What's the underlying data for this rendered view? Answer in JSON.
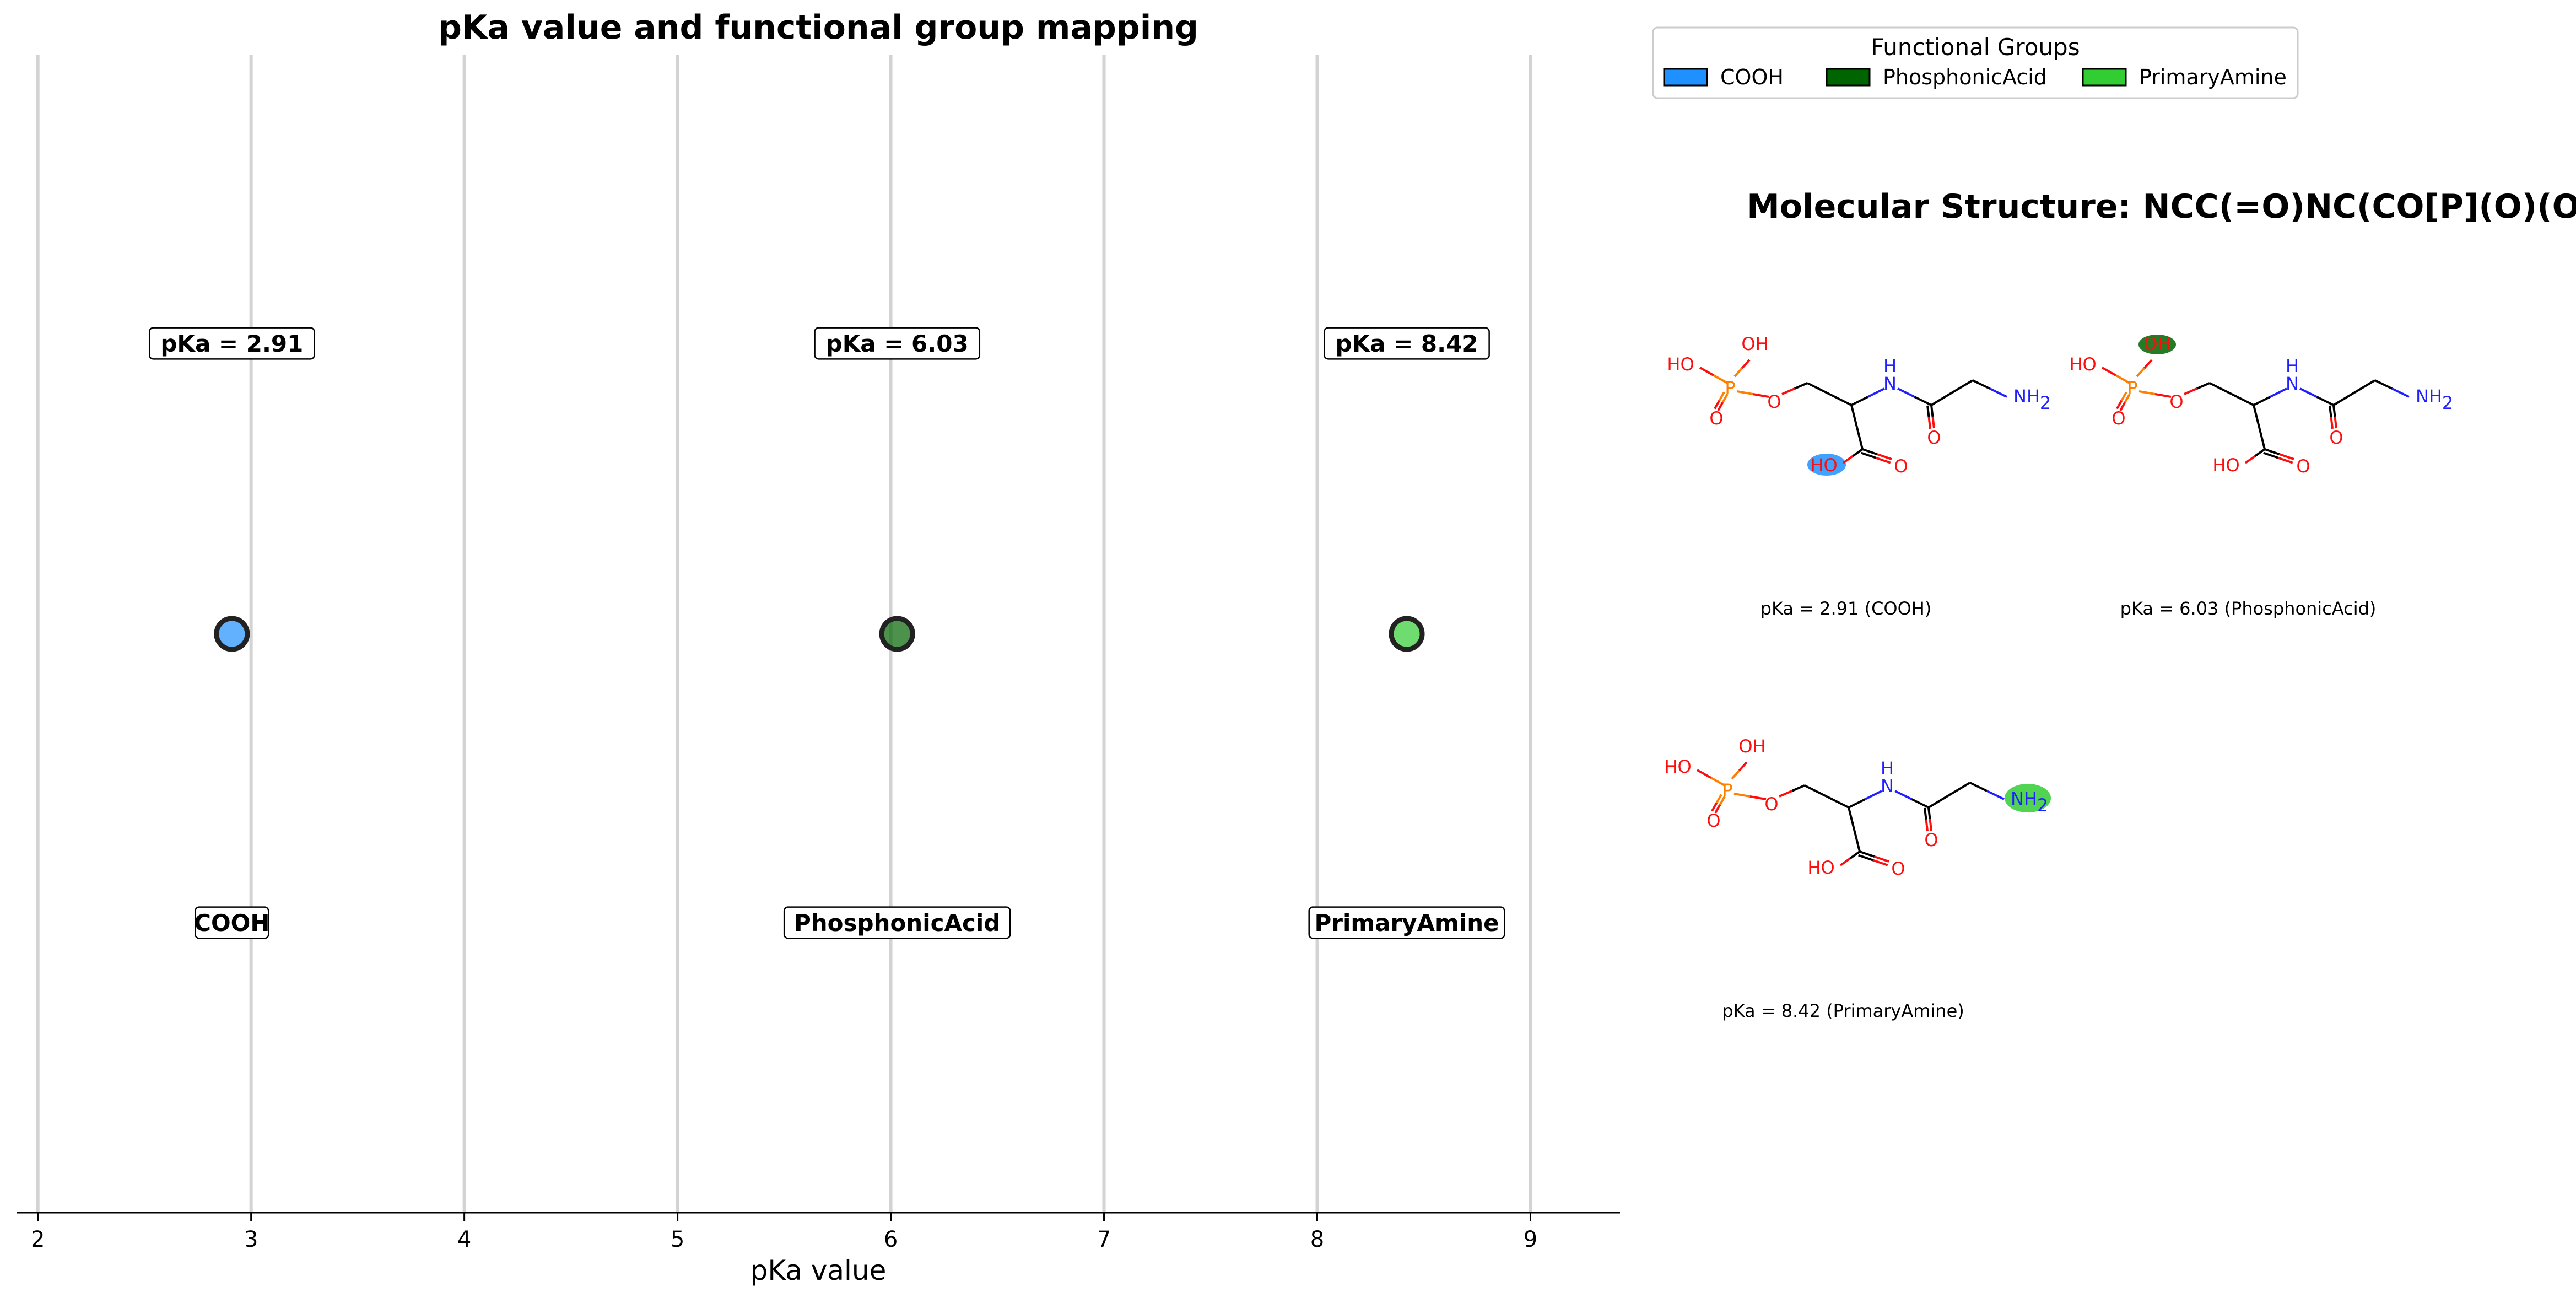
{
  "chart_data": [
    {
      "type": "scatter",
      "title": "pKa value and functional group mapping",
      "xlabel": "pKa value",
      "ylabel": "",
      "xlim": [
        1.9,
        9.42
      ],
      "xticks": [
        2,
        3,
        4,
        5,
        6,
        7,
        8,
        9
      ],
      "grid": "vertical",
      "points": [
        {
          "x": 2.91,
          "group": "COOH",
          "label": "pKa = 2.91",
          "color": "#1e90ff"
        },
        {
          "x": 6.03,
          "group": "PhosphonicAcid",
          "label": "pKa = 6.03",
          "color": "#006400"
        },
        {
          "x": 8.42,
          "group": "PrimaryAmine",
          "label": "pKa = 8.42",
          "color": "#32cd32"
        }
      ]
    }
  ],
  "legend": {
    "title": "Functional Groups",
    "placement": "top-right",
    "items": [
      {
        "label": "COOH",
        "color": "#1e90ff"
      },
      {
        "label": "PhosphonicAcid",
        "color": "#006400"
      },
      {
        "label": "PrimaryAmine",
        "color": "#32cd32"
      }
    ]
  },
  "structure_panel": {
    "title": "Molecular Structure: NCC(=O)NC(CO[P](O)(O)=O)C(O)=O",
    "panels": [
      {
        "caption": "pKa = 2.91 (COOH)",
        "highlight": "COOH",
        "color": "#1e90ff"
      },
      {
        "caption": "pKa = 6.03 (PhosphonicAcid)",
        "highlight": "PhosphonicAcid",
        "color": "#006400"
      },
      {
        "caption": "pKa = 8.42 (PrimaryAmine)",
        "highlight": "PrimaryAmine",
        "color": "#32cd32"
      }
    ],
    "atoms": {
      "oh": "OH",
      "ho": "HO",
      "o": "O",
      "p": "P",
      "h": "H",
      "n": "N",
      "nh": "NH",
      "sub2": "2"
    }
  }
}
